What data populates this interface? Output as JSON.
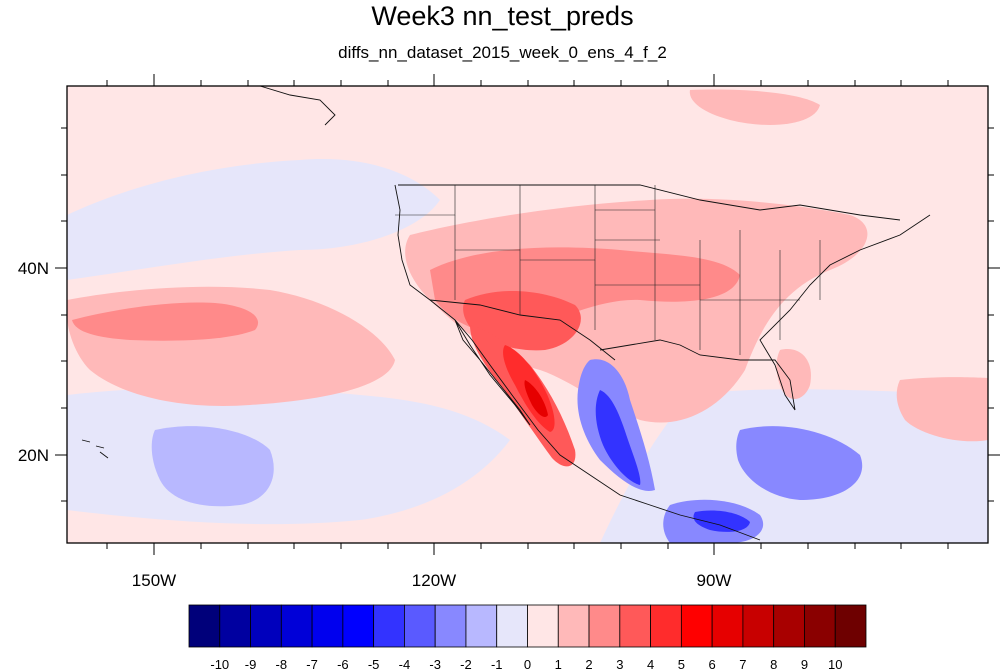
{
  "title": "Week3 nn_test_preds",
  "subtitle": "diffs_nn_dataset_2015_week_0_ens_4_f_2",
  "map": {
    "region": "Eastern North Pacific / contiguous United States / Mexico",
    "lon_range": [
      -160,
      -60
    ],
    "lat_range": [
      10,
      59
    ],
    "x_tick_labels": [
      "150W",
      "120W",
      "90W"
    ],
    "y_tick_labels": [
      "40N",
      "20N"
    ],
    "background_level": "0 to 1",
    "features": [
      {
        "label": "strong positive anomaly (5 to 8)",
        "area": "Baja California / Gulf of California / west Mexico"
      },
      {
        "label": "positive anomaly (2 to 5)",
        "area": "Arizona, Utah, Colorado, Kansas, Missouri"
      },
      {
        "label": "positive anomaly (2 to 3)",
        "area": "subtropical Pacific band near 30N"
      },
      {
        "label": "negative anomaly (-4 to -8)",
        "area": "Gulf of Mexico west coast and Central America Pacific coast"
      },
      {
        "label": "negative anomaly (-1 to -3)",
        "area": "tropical Pacific south of Hawaii"
      }
    ]
  },
  "colorbar": {
    "levels": [
      "-10",
      "-9",
      "-8",
      "-7",
      "-6",
      "-5",
      "-4",
      "-3",
      "-2",
      "-1",
      "0",
      "1",
      "2",
      "3",
      "4",
      "5",
      "6",
      "7",
      "8",
      "9",
      "10"
    ],
    "colors": [
      "#00007a",
      "#0000a0",
      "#0000bd",
      "#0000d8",
      "#0000ee",
      "#0000ff",
      "#3333ff",
      "#5a5aff",
      "#8888ff",
      "#b8b8ff",
      "#e6e6fa",
      "#ffe6e6",
      "#ffb9b9",
      "#ff8a8a",
      "#ff5959",
      "#ff2c2c",
      "#ff0000",
      "#e60000",
      "#c80000",
      "#a80000",
      "#8a0000",
      "#6e0000"
    ]
  }
}
